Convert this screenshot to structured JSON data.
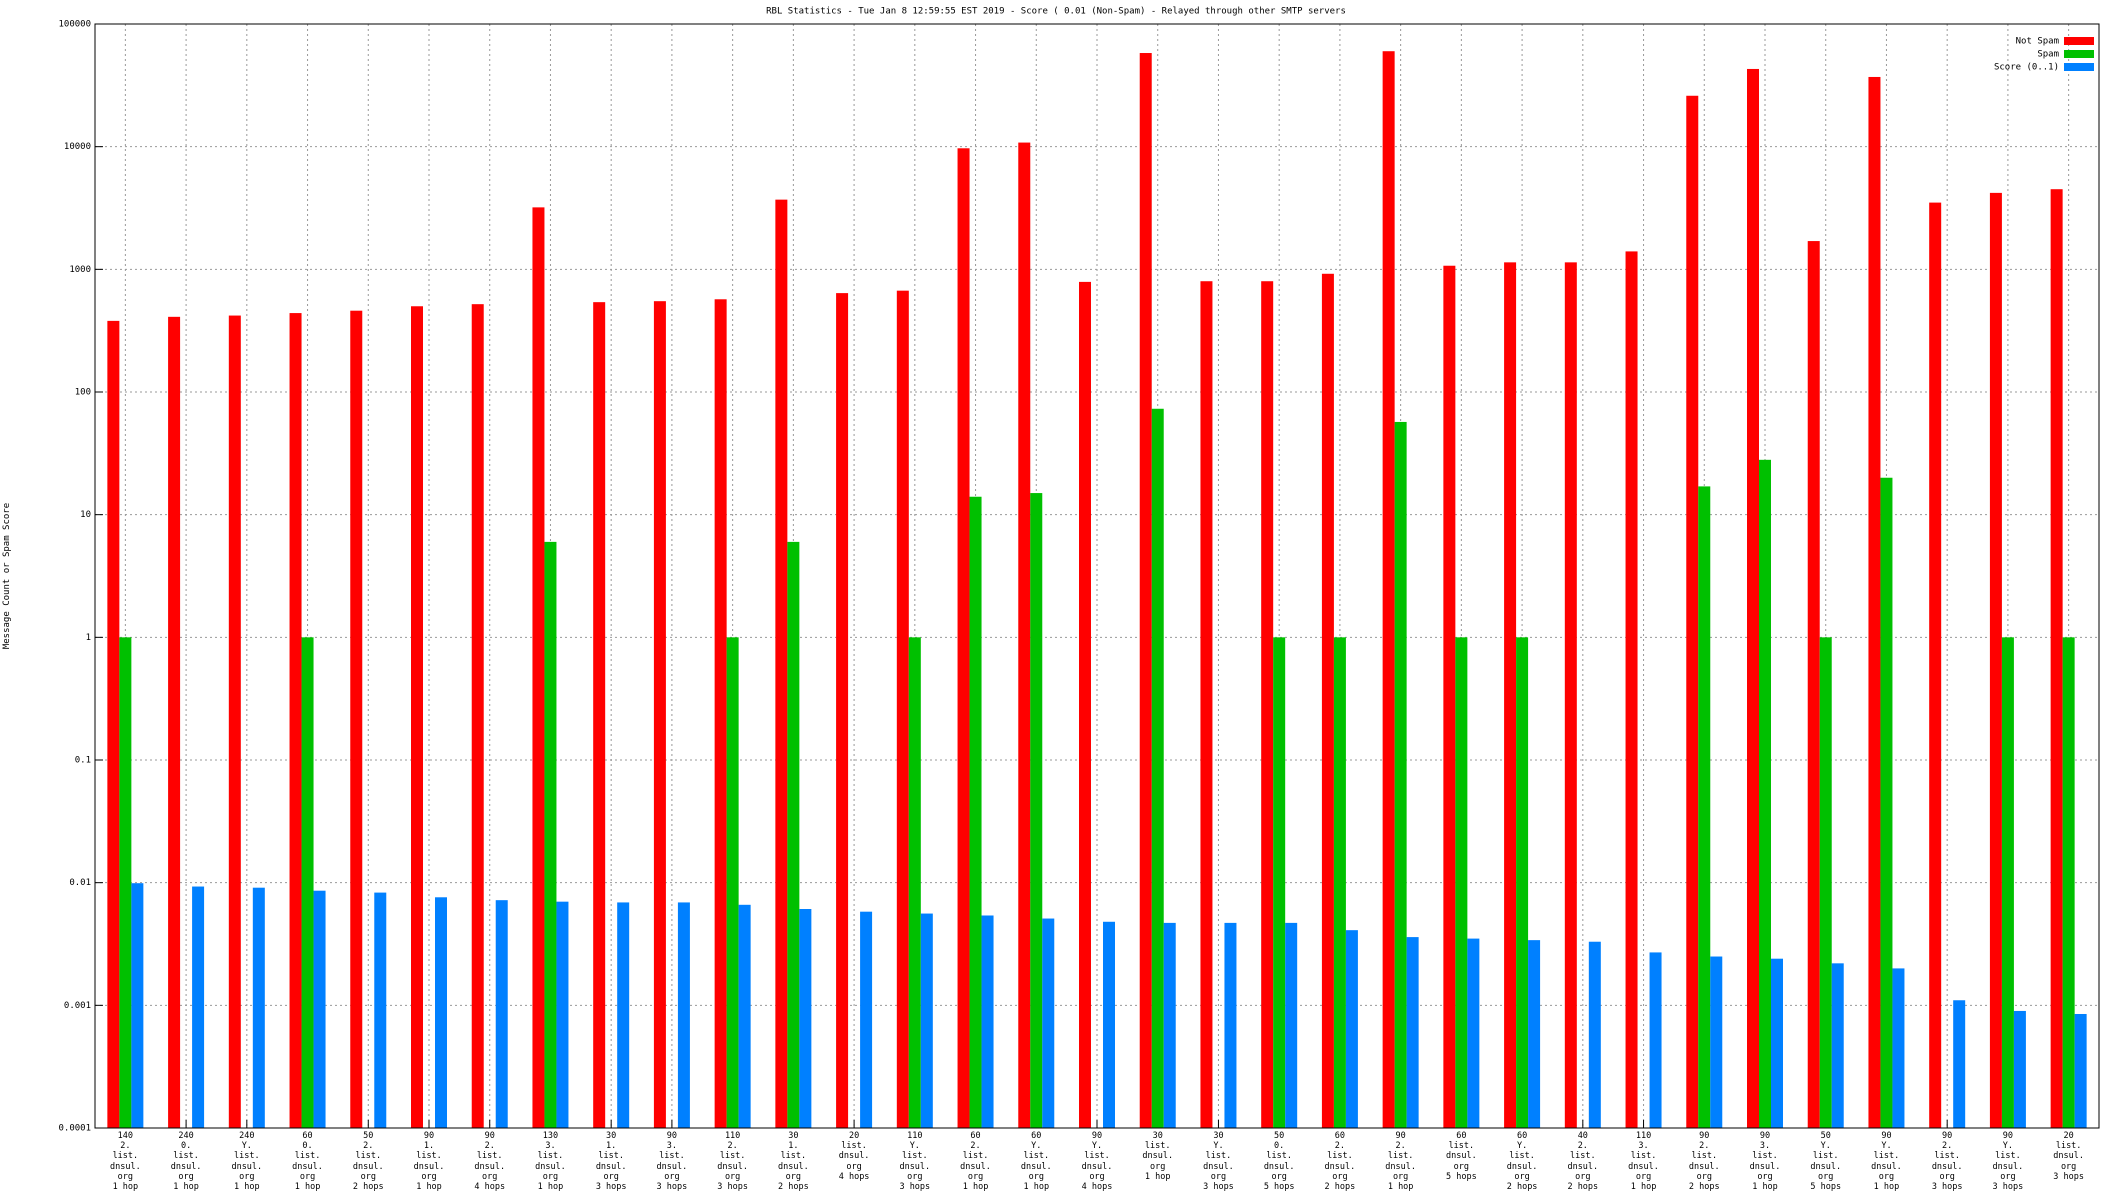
{
  "chart_data": {
    "type": "bar",
    "title": "RBL Statistics - Tue Jan  8 12:59:55 EST 2019 - Score ( 0.01 (Non-Spam) - Relayed through other SMTP servers",
    "y_label": "Message Count or Spam Score",
    "categories": [
      "140\n2.\nlist.\ndnsul.\norg\n1 hop",
      "240\n0.\nlist.\ndnsul.\norg\n1 hop",
      "240\nY.\nlist.\ndnsul.\norg\n1 hop",
      "60\n0.\nlist.\ndnsul.\norg\n1 hop",
      "50\n2.\nlist.\ndnsul.\norg\n2 hops",
      "90\n1.\nlist.\ndnsul.\norg\n1 hop",
      "90\n2.\nlist.\ndnsul.\norg\n4 hops",
      "130\n3.\nlist.\ndnsul.\norg\n1 hop",
      "30\n1.\nlist.\ndnsul.\norg\n3 hops",
      "90\n3.\nlist.\ndnsul.\norg\n3 hops",
      "110\n2.\nlist.\ndnsul.\norg\n3 hops",
      "30\n1.\nlist.\ndnsul.\norg\n2 hops",
      "20\nlist.\ndnsul.\norg\n4 hops",
      "110\nY.\nlist.\ndnsul.\norg\n3 hops",
      "60\n2.\nlist.\ndnsul.\norg\n1 hop",
      "60\nY.\nlist.\ndnsul.\norg\n1 hop",
      "90\nY.\nlist.\ndnsul.\norg\n4 hops",
      "30\nlist.\ndnsul.\norg\n1 hop",
      "30\nY.\nlist.\ndnsul.\norg\n3 hops",
      "50\n0.\nlist.\ndnsul.\norg\n5 hops",
      "60\n2.\nlist.\ndnsul.\norg\n2 hops",
      "90\n2.\nlist.\ndnsul.\norg\n1 hop",
      "60\nlist.\ndnsul.\norg\n5 hops",
      "60\nY.\nlist.\ndnsul.\norg\n2 hops",
      "40\n2.\nlist.\ndnsul.\norg\n2 hops",
      "110\n3.\nlist.\ndnsul.\norg\n1 hop",
      "90\n2.\nlist.\ndnsul.\norg\n2 hops",
      "90\n3.\nlist.\ndnsul.\norg\n1 hop",
      "50\nY.\nlist.\ndnsul.\norg\n5 hops",
      "90\nY.\nlist.\ndnsul.\norg\n1 hop",
      "90\n2.\nlist.\ndnsul.\norg\n3 hops",
      "90\nY.\nlist.\ndnsul.\norg\n3 hops",
      "20\nlist.\ndnsul.\norg\n3 hops"
    ],
    "series": [
      {
        "name": "Not Spam",
        "color": "#ff0000",
        "values": [
          380,
          410,
          420,
          440,
          460,
          500,
          520,
          3200,
          540,
          550,
          570,
          3700,
          640,
          670,
          9700,
          10800,
          790,
          58000,
          800,
          800,
          920,
          60000,
          1070,
          1140,
          1140,
          1400,
          26000,
          43000,
          1700,
          37000,
          3500,
          4200,
          4500
        ]
      },
      {
        "name": "Spam",
        "color": "#00c000",
        "values": [
          1,
          null,
          null,
          1,
          null,
          null,
          null,
          6,
          null,
          null,
          1,
          6,
          null,
          1,
          14,
          15,
          null,
          73,
          null,
          1,
          1,
          57,
          1,
          1,
          null,
          null,
          17,
          28,
          1,
          20,
          null,
          1,
          1
        ]
      },
      {
        "name": "Score (0..1)",
        "color": "#0080ff",
        "values": [
          0.0099,
          0.0093,
          0.0091,
          0.0086,
          0.0083,
          0.0076,
          0.0072,
          0.007,
          0.0069,
          0.0069,
          0.0066,
          0.0061,
          0.0058,
          0.0056,
          0.0054,
          0.0051,
          0.0048,
          0.0047,
          0.0047,
          0.0047,
          0.0041,
          0.0036,
          0.0035,
          0.0034,
          0.0033,
          0.0027,
          0.0025,
          0.0024,
          0.0022,
          0.002,
          0.0011,
          0.0009,
          0.00085
        ]
      }
    ],
    "log_scale": true,
    "ylim": [
      0.0001,
      100000
    ],
    "yticks": [
      0.0001,
      0.001,
      0.01,
      0.1,
      1,
      10,
      100,
      1000,
      10000,
      100000
    ],
    "grid": true,
    "legend": "top-right"
  }
}
